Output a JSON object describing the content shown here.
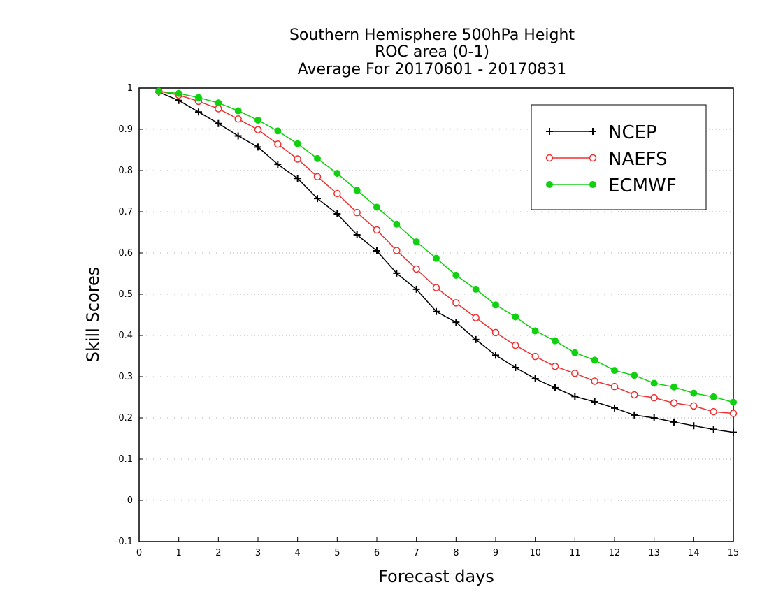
{
  "chart_data": {
    "type": "line",
    "title_lines": [
      "Southern Hemisphere 500hPa Height",
      "ROC area (0-1)",
      "Average For 20170601 - 20170831"
    ],
    "xlabel": "Forecast days",
    "ylabel": "Skill Scores",
    "xlim": [
      0,
      15
    ],
    "ylim": [
      -0.1,
      1
    ],
    "x_ticks": [
      "0",
      "1",
      "2",
      "3",
      "4",
      "5",
      "6",
      "7",
      "8",
      "9",
      "10",
      "11",
      "12",
      "13",
      "14",
      "15"
    ],
    "y_ticks": [
      "-0.1",
      "0",
      "0.1",
      "0.2",
      "0.3",
      "0.4",
      "0.5",
      "0.6",
      "0.7",
      "0.8",
      "0.9",
      "1"
    ],
    "grid": true,
    "legend_position": "top-right",
    "x": [
      0.5,
      1,
      1.5,
      2,
      2.5,
      3,
      3.5,
      4,
      4.5,
      5,
      5.5,
      6,
      6.5,
      7,
      7.5,
      8,
      8.5,
      9,
      9.5,
      10,
      10.5,
      11,
      11.5,
      12,
      12.5,
      13,
      13.5,
      14,
      14.5,
      15
    ],
    "series": [
      {
        "name": "NCEP",
        "color": "#000000",
        "marker": "plus",
        "values": [
          0.99,
          0.97,
          0.942,
          0.914,
          0.884,
          0.857,
          0.815,
          0.781,
          0.732,
          0.695,
          0.644,
          0.605,
          0.551,
          0.512,
          0.458,
          0.432,
          0.39,
          0.352,
          0.322,
          0.295,
          0.273,
          0.252,
          0.239,
          0.224,
          0.207,
          0.2,
          0.19,
          0.181,
          0.172,
          0.165
        ]
      },
      {
        "name": "NAEFS",
        "color": "#ef3030",
        "marker": "open-circle",
        "values": [
          0.992,
          0.983,
          0.968,
          0.95,
          0.925,
          0.899,
          0.864,
          0.828,
          0.785,
          0.744,
          0.698,
          0.656,
          0.606,
          0.561,
          0.516,
          0.479,
          0.443,
          0.407,
          0.376,
          0.349,
          0.325,
          0.308,
          0.289,
          0.276,
          0.256,
          0.249,
          0.236,
          0.229,
          0.215,
          0.211
        ]
      },
      {
        "name": "ECMWF",
        "color": "#10d010",
        "marker": "filled-circle",
        "values": [
          0.992,
          0.987,
          0.977,
          0.964,
          0.945,
          0.922,
          0.896,
          0.865,
          0.829,
          0.793,
          0.752,
          0.711,
          0.67,
          0.627,
          0.587,
          0.546,
          0.512,
          0.474,
          0.445,
          0.411,
          0.387,
          0.358,
          0.34,
          0.315,
          0.303,
          0.284,
          0.275,
          0.26,
          0.251,
          0.238
        ]
      }
    ]
  }
}
